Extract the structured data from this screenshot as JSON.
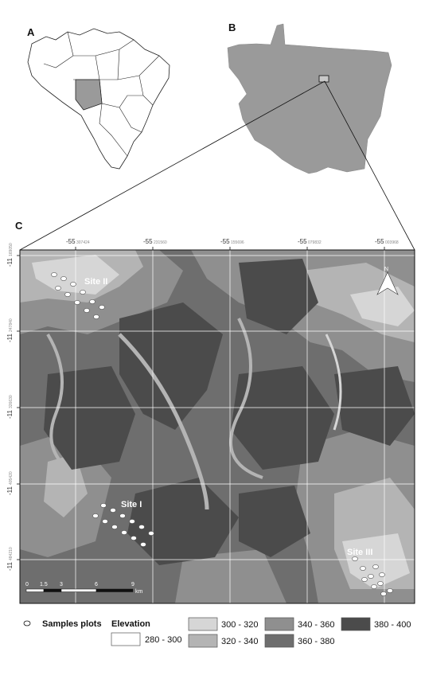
{
  "panels": {
    "a_label": "A",
    "b_label": "B",
    "c_label": "C"
  },
  "map_c": {
    "longitude_ticks": [
      {
        "major": "-55",
        "minor": "307424"
      },
      {
        "major": "-55",
        "minor": "231560"
      },
      {
        "major": "-55",
        "minor": "155696"
      },
      {
        "major": "-55",
        "minor": "079832"
      },
      {
        "major": "-55",
        "minor": "003968"
      }
    ],
    "latitude_ticks": [
      {
        "major": "-11",
        "minor": "169050"
      },
      {
        "major": "-11",
        "minor": "247840"
      },
      {
        "major": "-11",
        "minor": "326630"
      },
      {
        "major": "-11",
        "minor": "405420"
      },
      {
        "major": "-11",
        "minor": "484210"
      }
    ],
    "sites": [
      "Site II",
      "Site I",
      "Site III"
    ],
    "north_label": "N",
    "scale_bar": {
      "ticks": [
        "0",
        "1.5",
        "3",
        "6",
        "9"
      ],
      "unit": "km"
    }
  },
  "legend": {
    "samples_label": "Samples plots",
    "elevation_title": "Elevation",
    "classes": [
      {
        "range": "280 - 300",
        "color": "#ffffff"
      },
      {
        "range": "300 - 320",
        "color": "#d6d6d6"
      },
      {
        "range": "320 - 340",
        "color": "#b4b4b4"
      },
      {
        "range": "340 - 360",
        "color": "#8f8f8f"
      },
      {
        "range": "360 - 380",
        "color": "#6e6e6e"
      },
      {
        "range": "380 - 400",
        "color": "#4b4b4b"
      }
    ]
  }
}
